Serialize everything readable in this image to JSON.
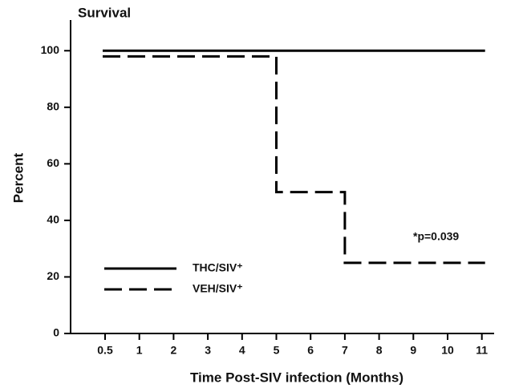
{
  "chart_data": {
    "type": "step",
    "title": "Survival",
    "xlabel": "Time Post-SIV infection (Months)",
    "ylabel": "Percent",
    "categories": [
      "0.5",
      "1",
      "2",
      "3",
      "4",
      "5",
      "6",
      "7",
      "8",
      "9",
      "10",
      "11"
    ],
    "series": [
      {
        "name": "THC/SIV⁺",
        "color": "#000000",
        "style": "solid",
        "values": [
          100,
          100,
          100,
          100,
          100,
          100,
          100,
          100,
          100,
          100,
          100,
          100
        ]
      },
      {
        "name": "VEH/SIV⁺",
        "color": "#000000",
        "style": "dashed",
        "values": [
          98,
          98,
          98,
          98,
          98,
          50,
          50,
          25,
          25,
          25,
          25,
          25
        ]
      }
    ],
    "annotation": "*p=0.039",
    "ylim": [
      0,
      110
    ],
    "yticks": [
      0,
      20,
      40,
      60,
      80,
      100
    ],
    "legend": "lower left",
    "grid": false
  }
}
